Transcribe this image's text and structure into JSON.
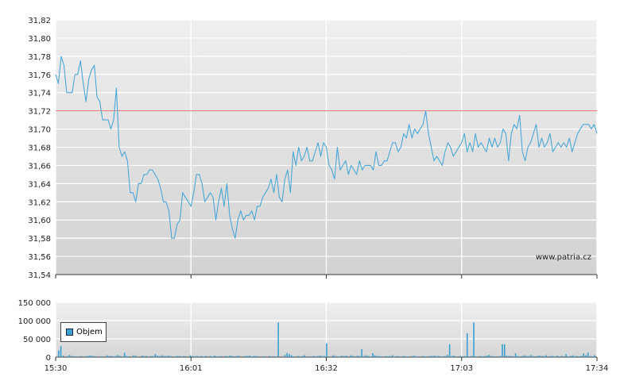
{
  "chart_data": [
    {
      "type": "line",
      "title": "",
      "xlabel": "",
      "ylabel": "",
      "ylim": [
        31.54,
        31.82
      ],
      "y_ticks": [
        "31,82",
        "31,80",
        "31,78",
        "31,76",
        "31,74",
        "31,72",
        "31,70",
        "31,68",
        "31,66",
        "31,64",
        "31,62",
        "31,60",
        "31,58",
        "31,56",
        "31,54"
      ],
      "x_ticks": [
        "15:30",
        "16:01",
        "16:32",
        "17:03",
        "17:34"
      ],
      "reference_line": 31.72,
      "reference_color": "#e07070",
      "line_color": "#4aa8d6",
      "watermark": "www.patria.cz",
      "series": [
        {
          "values": [
            31.76,
            31.75,
            31.78,
            31.77,
            31.74,
            31.74,
            31.74,
            31.76,
            31.76,
            31.775,
            31.75,
            31.73,
            31.755,
            31.765,
            31.77,
            31.735,
            31.73,
            31.71,
            31.71,
            31.71,
            31.7,
            31.71,
            31.745,
            31.68,
            31.67,
            31.675,
            31.665,
            31.63,
            31.63,
            31.62,
            31.64,
            31.64,
            31.65,
            31.65,
            31.655,
            31.655,
            31.65,
            31.645,
            31.635,
            31.62,
            31.62,
            31.61,
            31.58,
            31.58,
            31.595,
            31.6,
            31.63,
            31.625,
            31.62,
            31.615,
            31.63,
            31.65,
            31.65,
            31.64,
            31.62,
            31.625,
            31.63,
            31.625,
            31.6,
            31.62,
            31.635,
            31.615,
            31.64,
            31.605,
            31.59,
            31.58,
            31.6,
            31.61,
            31.6,
            31.605,
            31.605,
            31.61,
            31.6,
            31.615,
            31.615,
            31.625,
            31.63,
            31.635,
            31.645,
            31.63,
            31.65,
            31.625,
            31.62,
            31.645,
            31.655,
            31.63,
            31.675,
            31.66,
            31.68,
            31.665,
            31.67,
            31.68,
            31.665,
            31.665,
            31.675,
            31.685,
            31.67,
            31.685,
            31.68,
            31.66,
            31.655,
            31.645,
            31.68,
            31.655,
            31.66,
            31.665,
            31.65,
            31.66,
            31.655,
            31.65,
            31.665,
            31.655,
            31.66,
            31.66,
            31.66,
            31.655,
            31.675,
            31.66,
            31.66,
            31.665,
            31.665,
            31.675,
            31.685,
            31.685,
            31.675,
            31.68,
            31.695,
            31.69,
            31.705,
            31.69,
            31.7,
            31.695,
            31.7,
            31.705,
            31.72,
            31.695,
            31.68,
            31.665,
            31.67,
            31.665,
            31.66,
            31.675,
            31.685,
            31.68,
            31.67,
            31.675,
            31.68,
            31.685,
            31.695,
            31.675,
            31.685,
            31.675,
            31.695,
            31.68,
            31.685,
            31.68,
            31.675,
            31.69,
            31.68,
            31.69,
            31.68,
            31.685,
            31.7,
            31.695,
            31.665,
            31.695,
            31.705,
            31.7,
            31.715,
            31.675,
            31.665,
            31.68,
            31.685,
            31.695,
            31.705,
            31.68,
            31.69,
            31.68,
            31.685,
            31.695,
            31.675,
            31.68,
            31.685,
            31.68,
            31.685,
            31.68,
            31.69,
            31.675,
            31.685,
            31.695,
            31.7,
            31.705,
            31.705,
            31.705,
            31.7,
            31.705,
            31.695
          ]
        }
      ]
    },
    {
      "type": "bar",
      "title": "",
      "xlabel": "",
      "ylabel": "",
      "ylim": [
        0,
        150000
      ],
      "y_ticks": [
        "150 000",
        "100 000",
        "50 000",
        "0"
      ],
      "x_ticks": [
        "15:30",
        "16:01",
        "16:32",
        "17:03",
        "17:34"
      ],
      "bar_color": "#3aa0d0",
      "series": [
        {
          "name": "Objem",
          "values": [
            18000,
            30000,
            4000,
            0,
            3000,
            6000,
            3000,
            2000,
            2000,
            0,
            3000,
            0,
            2000,
            3000,
            4000,
            4000,
            3000,
            2000,
            0,
            2000,
            2000,
            0,
            5000,
            3000,
            3000,
            2000,
            3000,
            6000,
            3000,
            2000,
            12000,
            3000,
            2000,
            0,
            5000,
            4000,
            0,
            0,
            4000,
            3000,
            3000,
            0,
            3000,
            3000,
            8000,
            4000,
            3000,
            5000,
            3000,
            3000,
            4000,
            3000,
            0,
            2000,
            3000,
            3000,
            2000,
            3000,
            2000,
            0,
            5000,
            3000,
            2000,
            3000,
            2000,
            3000,
            2000,
            3000,
            0,
            3000,
            2000,
            4000,
            2000,
            2000,
            3000,
            0,
            3000,
            2000,
            4000,
            3000,
            2000,
            3000,
            4000,
            0,
            2000,
            3000,
            3000,
            4000,
            2000,
            3000,
            3000,
            2000,
            0,
            2000,
            2000,
            0,
            3000,
            2000,
            2000,
            2000,
            95000,
            0,
            0,
            6000,
            11000,
            8000,
            5000,
            2000,
            0,
            3000,
            2000,
            3000,
            5000,
            2000,
            0,
            2000,
            3000,
            2000,
            3000,
            4000,
            3000,
            3000,
            38000,
            2000,
            0,
            5000,
            3000,
            2000,
            2000,
            4000,
            3000,
            4000,
            0,
            5000,
            3000,
            2000,
            4000,
            3000,
            22000,
            3000,
            5000,
            3000,
            2000,
            11000,
            5000,
            3000,
            3000,
            2000,
            0,
            3000,
            2000,
            3000,
            5000,
            2000,
            3000,
            2000,
            0,
            3000,
            2000,
            2000,
            0,
            3000,
            4000,
            2000,
            2000,
            0,
            3000,
            2000,
            2000,
            3000,
            3000,
            4000,
            3000,
            3000,
            2000,
            2000,
            3000,
            6000,
            35000,
            3000,
            4000,
            2000,
            0,
            3000,
            2000,
            3000,
            65000,
            2000,
            3000,
            95000,
            2000,
            0,
            3000,
            2000,
            3000,
            4000,
            6000,
            3000,
            2000,
            2000,
            0,
            3000,
            35000,
            35000,
            4000,
            3000,
            3000,
            2000,
            10000,
            3000,
            2000,
            3000,
            5000,
            3000,
            3000,
            6000,
            3000,
            2000,
            3000,
            4000,
            3000,
            3000,
            5000,
            2000,
            3000,
            3000,
            2000,
            4000,
            2000,
            3000,
            2000,
            8000,
            2000,
            3000,
            5000,
            3000,
            3000,
            2000,
            3000,
            10000,
            5000,
            12000,
            3000,
            2000,
            5000
          ]
        }
      ]
    }
  ]
}
